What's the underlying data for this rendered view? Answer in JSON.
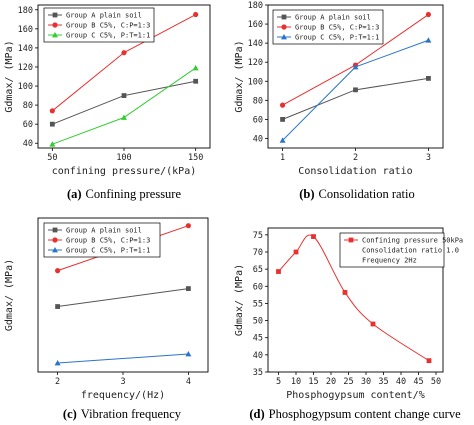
{
  "chart_data": [
    {
      "type": "line",
      "panel_label": "(a)",
      "caption": "Confining pressure",
      "xlabel": "confining pressure/(kPa)",
      "ylabel": "Gdmax/ (MPa)",
      "x": [
        50,
        100,
        150
      ],
      "xlim": [
        40,
        160
      ],
      "ylim": [
        35,
        185
      ],
      "xticks": [
        "50",
        "100",
        "150"
      ],
      "yticks": [
        40,
        60,
        80,
        100,
        120,
        140,
        160,
        180
      ],
      "legend_position": "top-left",
      "series": [
        {
          "name": "Group A plain soil",
          "color": "#555555",
          "marker": "square",
          "values": [
            60,
            90,
            105
          ]
        },
        {
          "name": "Group B C5%, C:P=1:3",
          "color": "#e8312f",
          "marker": "circle",
          "values": [
            74,
            135,
            175
          ]
        },
        {
          "name": "Group C C5%, P:T=1:1",
          "color": "#33cc33",
          "marker": "triangle",
          "values": [
            39,
            67,
            119
          ]
        }
      ]
    },
    {
      "type": "line",
      "panel_label": "(b)",
      "caption": "Consolidation ratio",
      "xlabel": "Consolidation ratio",
      "ylabel": "Gdmax/ (MPa)",
      "x": [
        1,
        2,
        3
      ],
      "xlim": [
        0.8,
        3.2
      ],
      "ylim": [
        30,
        180
      ],
      "xticks": [
        "1",
        "2",
        "3"
      ],
      "yticks": [
        40,
        60,
        80,
        100,
        120,
        140,
        160,
        180
      ],
      "legend_position": "top-left",
      "series": [
        {
          "name": "Group A plain soil",
          "color": "#555555",
          "marker": "square",
          "values": [
            60,
            91,
            103
          ]
        },
        {
          "name": "Group B C5%, C:P=1:3",
          "color": "#e8312f",
          "marker": "circle",
          "values": [
            75,
            117,
            170
          ]
        },
        {
          "name": "Group C C5%, P:T=1:1",
          "color": "#2a75c9",
          "marker": "triangle",
          "values": [
            38,
            115,
            143
          ]
        }
      ]
    },
    {
      "type": "line",
      "panel_label": "(c)",
      "caption": "Vibration frequency",
      "xlabel": "frequency/(Hz)",
      "ylabel": "Gdmax/ (MPa)",
      "x": [
        2,
        4
      ],
      "xlim": [
        1.7,
        4.3
      ],
      "ylim": [
        35,
        95
      ],
      "xticks": [
        "2",
        "3",
        "4"
      ],
      "xtick_values": [
        2,
        3,
        4
      ],
      "yticks": [],
      "legend_position": "top-left",
      "series": [
        {
          "name": "Group A plain soil",
          "color": "#555555",
          "marker": "square",
          "values": [
            60.5,
            67.5
          ]
        },
        {
          "name": "Group B C5%, C:P=1:3",
          "color": "#e8312f",
          "marker": "circle",
          "values": [
            74.5,
            92
          ]
        },
        {
          "name": "Group C C5%, P:T=1:1",
          "color": "#2a75c9",
          "marker": "triangle",
          "values": [
            38.5,
            42
          ]
        }
      ]
    },
    {
      "type": "line",
      "panel_label": "(d)",
      "caption": "Phosphogypsum content change curve",
      "xlabel": "Phosphogypsum content/%",
      "ylabel": "Gdmax/ (MPa)",
      "x": [
        5,
        10,
        15,
        24,
        32,
        48
      ],
      "xlim": [
        2,
        52
      ],
      "ylim": [
        35,
        77
      ],
      "xticks": [
        "5",
        "10",
        "15",
        "20",
        "25",
        "30",
        "35",
        "40",
        "45",
        "50"
      ],
      "xtick_values": [
        5,
        10,
        15,
        20,
        25,
        30,
        35,
        40,
        45,
        50
      ],
      "yticks": [
        35,
        40,
        45,
        50,
        55,
        60,
        65,
        70,
        75
      ],
      "legend_position": "top-right",
      "legend_lines": [
        "Confining pressure 50kPa",
        "Consolidation ratio 1.0",
        "Frequency 2Hz"
      ],
      "series": [
        {
          "name": "",
          "color": "#e8312f",
          "marker": "square",
          "smooth": true,
          "values": [
            64.3,
            70,
            74.5,
            58.2,
            49,
            38.3
          ]
        }
      ]
    }
  ]
}
